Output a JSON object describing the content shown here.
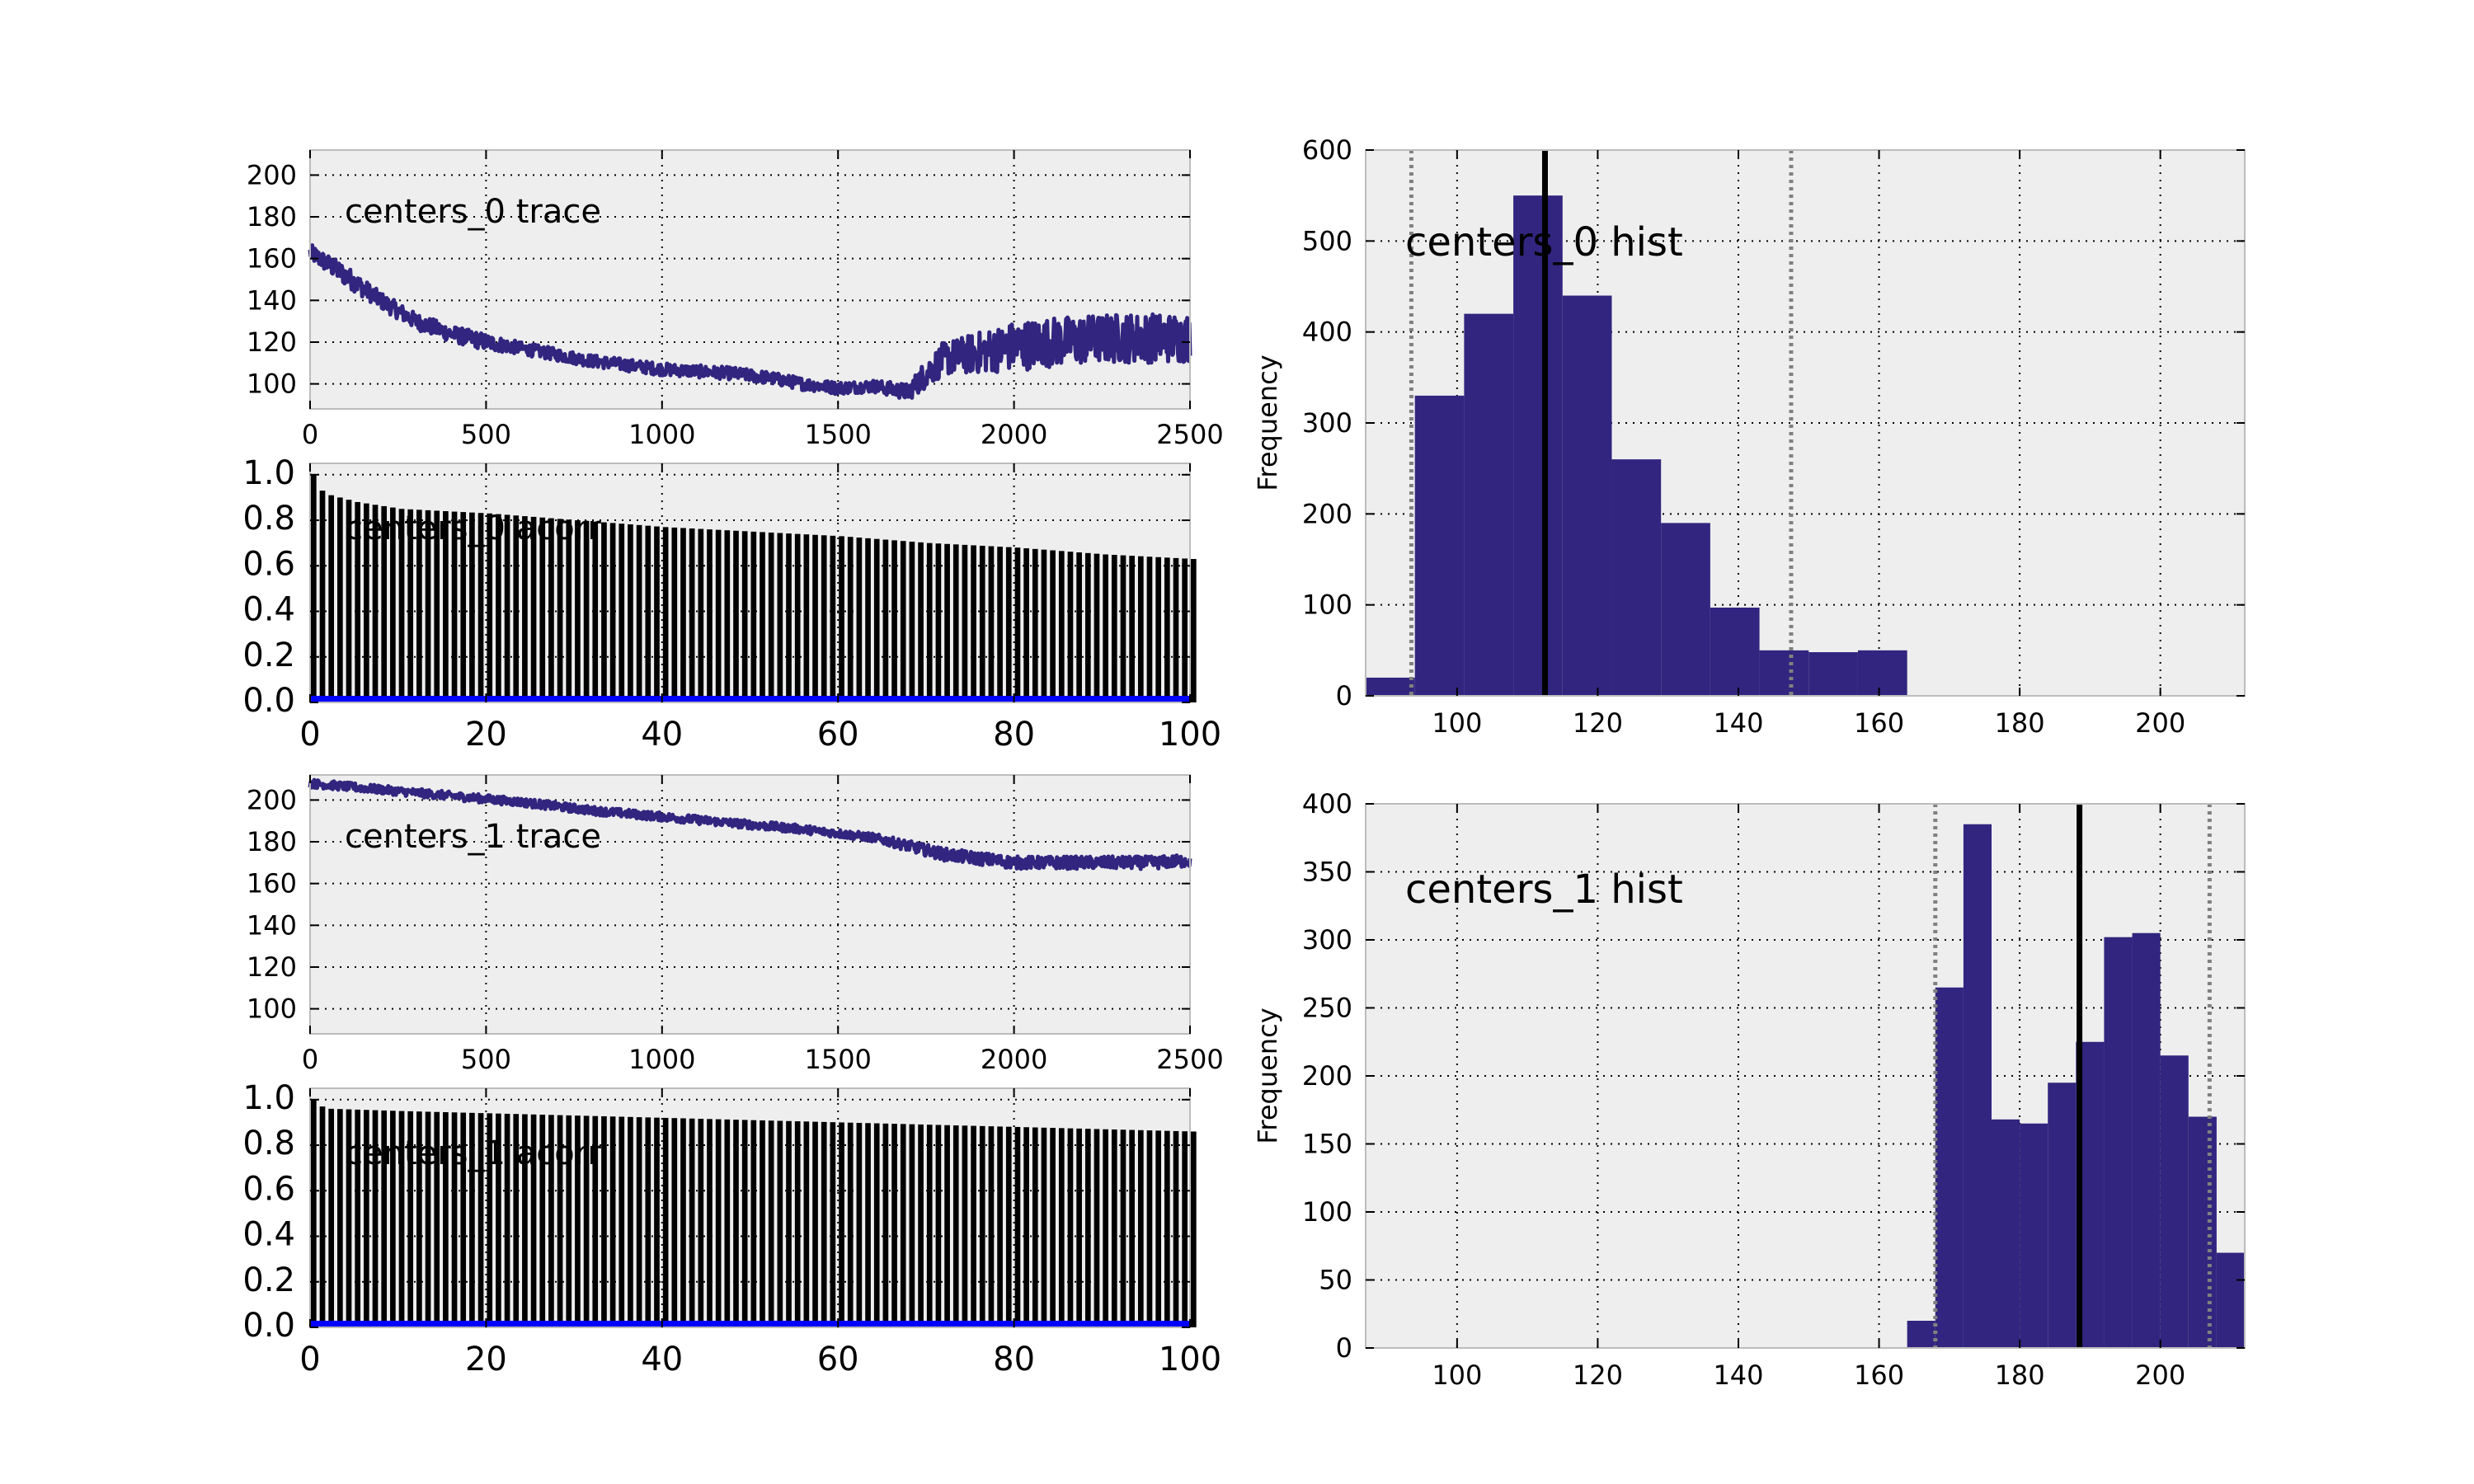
{
  "figure": {
    "background": "#ffffff",
    "axes_facecolor": "#eeeeee",
    "series_color": "#31257f",
    "acorr_bar_color": "#000000",
    "acorr_base_color": "#0000ff",
    "hist_mean_color": "#000000",
    "hist_interval_color": "#808080"
  },
  "chart_data": [
    {
      "type": "line",
      "title": "centers_0 trace",
      "xlim": [
        0,
        2500
      ],
      "ylim": [
        88,
        212
      ],
      "xticks": [
        0,
        500,
        1000,
        1500,
        2000,
        2500
      ],
      "yticks": [
        100,
        120,
        140,
        160,
        180,
        200
      ],
      "grid": true,
      "x": [
        0,
        100,
        200,
        300,
        400,
        500,
        600,
        700,
        800,
        900,
        1000,
        1100,
        1200,
        1300,
        1400,
        1500,
        1600,
        1700,
        1750,
        1800,
        1900,
        2000,
        2100,
        2200,
        2300,
        2400,
        2500
      ],
      "y": [
        163,
        152,
        140,
        130,
        124,
        120,
        117,
        114,
        111,
        109,
        107,
        106,
        105,
        103,
        100,
        98,
        99,
        96,
        105,
        112,
        115,
        118,
        120,
        121,
        122,
        122,
        122
      ],
      "noise": [
        4,
        5,
        4,
        4,
        4,
        4,
        3,
        3,
        3,
        3,
        3,
        3,
        3,
        3,
        3,
        3,
        3,
        4,
        7,
        8,
        10,
        12,
        12,
        12,
        12,
        12,
        12
      ]
    },
    {
      "type": "bar",
      "title": "centers_0 acorr",
      "xlim": [
        0,
        100
      ],
      "ylim": [
        0,
        1.05
      ],
      "xticks": [
        0,
        20,
        40,
        60,
        80,
        100
      ],
      "yticks": [
        0.0,
        0.2,
        0.4,
        0.6,
        0.8,
        1.0
      ],
      "grid": true,
      "lags_x": [
        0,
        1,
        2,
        5,
        10,
        20,
        30,
        40,
        50,
        60,
        70,
        80,
        90,
        100
      ],
      "values": [
        1.0,
        0.93,
        0.91,
        0.88,
        0.85,
        0.83,
        0.8,
        0.77,
        0.75,
        0.73,
        0.7,
        0.68,
        0.65,
        0.63
      ]
    },
    {
      "type": "line",
      "title": "centers_1 trace",
      "xlim": [
        0,
        2500
      ],
      "ylim": [
        88,
        212
      ],
      "xticks": [
        0,
        500,
        1000,
        1500,
        2000,
        2500
      ],
      "yticks": [
        100,
        120,
        140,
        160,
        180,
        200
      ],
      "grid": true,
      "x": [
        0,
        200,
        400,
        600,
        800,
        1000,
        1200,
        1400,
        1600,
        1800,
        2000,
        2200,
        2400,
        2500
      ],
      "y": [
        208,
        205,
        202,
        199,
        195,
        192,
        189,
        186,
        182,
        174,
        170,
        170,
        170,
        171
      ],
      "noise": [
        2,
        2,
        2,
        2,
        2,
        2,
        2,
        2,
        2,
        3,
        3,
        3,
        3,
        3
      ]
    },
    {
      "type": "bar",
      "title": "centers_1 acorr",
      "xlim": [
        0,
        100
      ],
      "ylim": [
        0,
        1.05
      ],
      "xticks": [
        0,
        20,
        40,
        60,
        80,
        100
      ],
      "yticks": [
        0.0,
        0.2,
        0.4,
        0.6,
        0.8,
        1.0
      ],
      "grid": true,
      "lags_x": [
        0,
        1,
        2,
        10,
        20,
        30,
        40,
        50,
        60,
        70,
        80,
        90,
        100
      ],
      "values": [
        1.0,
        0.97,
        0.96,
        0.95,
        0.94,
        0.93,
        0.92,
        0.91,
        0.9,
        0.89,
        0.88,
        0.87,
        0.86
      ]
    },
    {
      "type": "bar",
      "title": "centers_0 hist",
      "ylabel": "Frequency",
      "xlim": [
        87,
        212
      ],
      "ylim": [
        0,
        600
      ],
      "xticks": [
        100,
        120,
        140,
        160,
        180,
        200
      ],
      "yticks": [
        0,
        100,
        200,
        300,
        400,
        500,
        600
      ],
      "grid": true,
      "bin_edges": [
        87,
        94,
        101,
        108,
        115,
        122,
        129,
        136,
        143,
        150,
        157,
        164
      ],
      "counts": [
        20,
        330,
        420,
        550,
        440,
        260,
        190,
        97,
        50,
        48,
        50,
        18
      ],
      "mean": 112.5,
      "interval": [
        93.5,
        147.5
      ]
    },
    {
      "type": "bar",
      "title": "centers_1 hist",
      "ylabel": "Frequency",
      "xlim": [
        87,
        212
      ],
      "ylim": [
        0,
        400
      ],
      "xticks": [
        100,
        120,
        140,
        160,
        180,
        200
      ],
      "yticks": [
        0,
        50,
        100,
        150,
        200,
        250,
        300,
        350,
        400
      ],
      "grid": true,
      "bin_edges": [
        164,
        168,
        172,
        176,
        180,
        184,
        188,
        192,
        196,
        200,
        204,
        208,
        212
      ],
      "counts": [
        20,
        265,
        385,
        168,
        165,
        195,
        225,
        302,
        305,
        215,
        170,
        70
      ],
      "mean": 188.5,
      "interval": [
        168,
        207
      ]
    }
  ]
}
